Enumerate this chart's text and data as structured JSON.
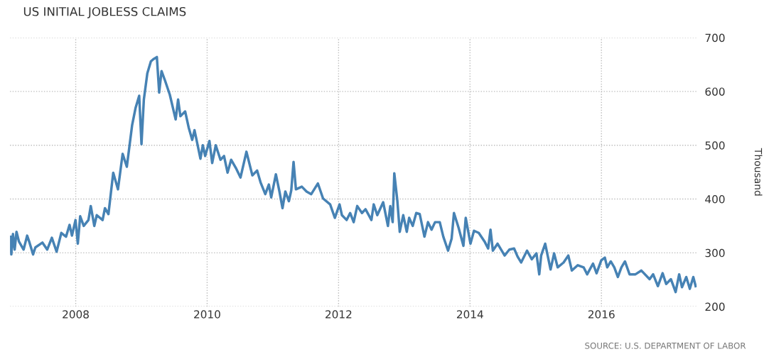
{
  "chart_data": {
    "type": "line",
    "title": "US INITIAL JOBLESS CLAIMS",
    "ylabel": "Thousand",
    "annotations": [
      "SOURCE: U.S. DEPARTMENT OF LABOR"
    ],
    "x": [
      2007.01,
      2007.02,
      2007.045,
      2007.071,
      2007.099,
      2007.136,
      2007.207,
      2007.261,
      2007.297,
      2007.351,
      2007.386,
      2007.494,
      2007.566,
      2007.637,
      2007.709,
      2007.781,
      2007.853,
      2007.906,
      2007.943,
      2007.997,
      2008.032,
      2008.068,
      2008.122,
      2008.194,
      2008.229,
      2008.283,
      2008.32,
      2008.409,
      2008.445,
      2008.498,
      2008.571,
      2008.643,
      2008.714,
      2008.778,
      2008.858,
      2008.912,
      2008.966,
      2009.001,
      2009.037,
      2009.09,
      2009.144,
      2009.181,
      2009.235,
      2009.27,
      2009.306,
      2009.36,
      2009.432,
      2009.521,
      2009.558,
      2009.593,
      2009.665,
      2009.719,
      2009.773,
      2009.808,
      2009.898,
      2009.934,
      2009.97,
      2010.035,
      2010.077,
      2010.131,
      2010.203,
      2010.257,
      2010.311,
      2010.365,
      2010.436,
      2010.508,
      2010.598,
      2010.688,
      2010.76,
      2010.813,
      2010.885,
      2010.939,
      2010.975,
      2011.046,
      2011.1,
      2011.147,
      2011.19,
      2011.244,
      2011.28,
      2011.315,
      2011.351,
      2011.441,
      2011.513,
      2011.584,
      2011.685,
      2011.764,
      2011.872,
      2011.943,
      2012.015,
      2012.051,
      2012.123,
      2012.176,
      2012.23,
      2012.284,
      2012.356,
      2012.41,
      2012.5,
      2012.535,
      2012.589,
      2012.679,
      2012.751,
      2012.787,
      2012.823,
      2012.848,
      2012.895,
      2012.931,
      2012.984,
      2013.038,
      2013.074,
      2013.128,
      2013.182,
      2013.235,
      2013.307,
      2013.361,
      2013.415,
      2013.468,
      2013.54,
      2013.594,
      2013.666,
      2013.72,
      2013.756,
      2013.828,
      2013.9,
      2013.935,
      2014.007,
      2014.061,
      2014.133,
      2014.222,
      2014.276,
      2014.312,
      2014.348,
      2014.419,
      2014.527,
      2014.599,
      2014.671,
      2014.724,
      2014.778,
      2014.868,
      2014.94,
      2015.011,
      2015.054,
      2015.083,
      2015.144,
      2015.226,
      2015.28,
      2015.334,
      2015.424,
      2015.496,
      2015.55,
      2015.64,
      2015.729,
      2015.783,
      2015.872,
      2015.926,
      2015.998,
      2016.052,
      2016.088,
      2016.142,
      2016.196,
      2016.25,
      2016.304,
      2016.358,
      2016.428,
      2016.518,
      2016.608,
      2016.733,
      2016.787,
      2016.859,
      2016.931,
      2016.985,
      2017.057,
      2017.129,
      2017.183,
      2017.226,
      2017.291,
      2017.345,
      2017.398,
      2017.434
    ],
    "series": [
      {
        "color": "#4682b4",
        "values": [
          330,
          297,
          335,
          306,
          339,
          321,
          306,
          332,
          319,
          297,
          310,
          319,
          306,
          328,
          302,
          337,
          330,
          352,
          332,
          361,
          317,
          368,
          350,
          361,
          387,
          350,
          370,
          361,
          383,
          372,
          449,
          418,
          484,
          460,
          537,
          570,
          592,
          502,
          585,
          634,
          656,
          660,
          664,
          598,
          638,
          620,
          594,
          548,
          585,
          554,
          563,
          533,
          510,
          528,
          475,
          500,
          480,
          508,
          467,
          500,
          473,
          480,
          449,
          473,
          458,
          440,
          488,
          444,
          453,
          431,
          409,
          427,
          403,
          446,
          414,
          383,
          414,
          396,
          416,
          469,
          418,
          423,
          414,
          409,
          429,
          401,
          390,
          365,
          390,
          370,
          361,
          374,
          357,
          387,
          374,
          381,
          361,
          390,
          370,
          394,
          350,
          387,
          357,
          448,
          396,
          339,
          370,
          339,
          365,
          350,
          374,
          372,
          330,
          357,
          343,
          357,
          357,
          330,
          304,
          326,
          374,
          346,
          313,
          365,
          317,
          341,
          337,
          321,
          308,
          343,
          304,
          317,
          295,
          306,
          308,
          293,
          282,
          304,
          288,
          299,
          260,
          295,
          317,
          269,
          299,
          273,
          282,
          295,
          267,
          277,
          273,
          260,
          280,
          262,
          286,
          291,
          273,
          284,
          273,
          255,
          273,
          284,
          260,
          260,
          267,
          251,
          260,
          238,
          262,
          242,
          251,
          227,
          260,
          236,
          255,
          233,
          255,
          238
        ]
      }
    ],
    "xlim": [
      2007.0,
      2017.45
    ],
    "xticks": [
      2008,
      2010,
      2012,
      2014,
      2016
    ],
    "ylim": [
      200,
      700
    ],
    "yticks": [
      200,
      300,
      400,
      500,
      600,
      700
    ],
    "grid": true,
    "marker": "none",
    "line_style": "solid"
  }
}
